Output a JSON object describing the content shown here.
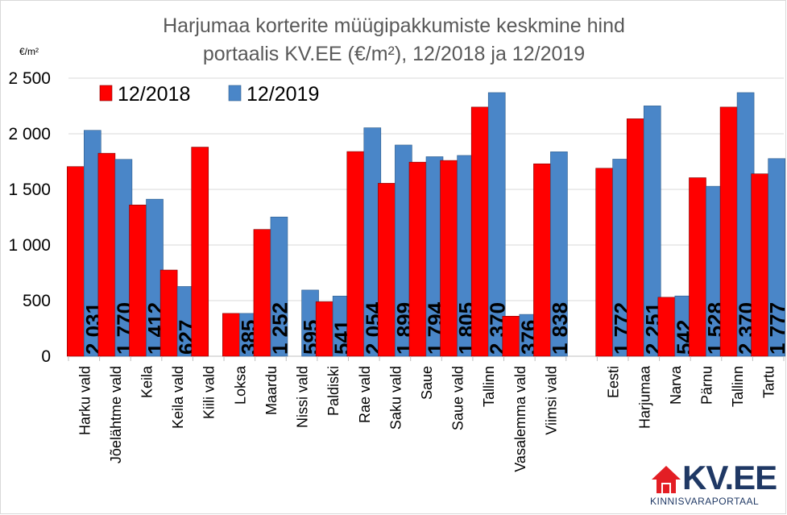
{
  "chart_data": {
    "type": "bar",
    "title_lines": [
      "Harjumaa korterite müügipakkumiste keskmine hind",
      "portaalis KV.EE (€/m²), 12/2018 ja 12/2019"
    ],
    "unit_label": "€/m²",
    "ylim": [
      0,
      2500
    ],
    "yticks": [
      0,
      500,
      1000,
      1500,
      2000,
      2500
    ],
    "ytick_labels": [
      "0",
      "500",
      "1 000",
      "1 500",
      "2 000",
      "2 500"
    ],
    "grid": true,
    "legend_position": "top-left",
    "categories": [
      "Harku vald",
      "Jõelähtme vald",
      "Keila",
      "Keila vald",
      "Kiili vald",
      "Loksa",
      "Maardu",
      "Nissi vald",
      "Paldiski",
      "Rae vald",
      "Saku vald",
      "Saue",
      "Saue vald",
      "Tallinn",
      "Vasalemma vald",
      "Viimsi vald",
      "",
      "Eesti",
      "Harjumaa",
      "Narva",
      "Pärnu",
      "Tallinn",
      "Tartu"
    ],
    "series": [
      {
        "name": "12/2018",
        "color": "#ff0000",
        "values": [
          1705,
          1825,
          1360,
          775,
          1880,
          385,
          1140,
          null,
          490,
          1840,
          1555,
          1745,
          1760,
          2240,
          360,
          1730,
          null,
          1690,
          2135,
          530,
          1605,
          2240,
          1640
        ]
      },
      {
        "name": "12/2019",
        "color": "#4a86c8",
        "values": [
          2031,
          1770,
          1412,
          627,
          null,
          385,
          1252,
          595,
          541,
          2054,
          1899,
          1794,
          1805,
          2370,
          376,
          1838,
          null,
          1772,
          2251,
          542,
          1528,
          2370,
          1777
        ]
      }
    ],
    "data_labels": [
      "2 031",
      "1 770",
      "1 412",
      "627",
      "",
      "385",
      "1 252",
      "595",
      "541",
      "2 054",
      "1 899",
      "1 794",
      "1 805",
      "2 370",
      "376",
      "1 838",
      "",
      "1 772",
      "2 251",
      "542",
      "1 528",
      "2 370",
      "1 777"
    ]
  },
  "logo": {
    "name": "KV.EE",
    "tagline": "KINNISVARAPORTAAL"
  }
}
